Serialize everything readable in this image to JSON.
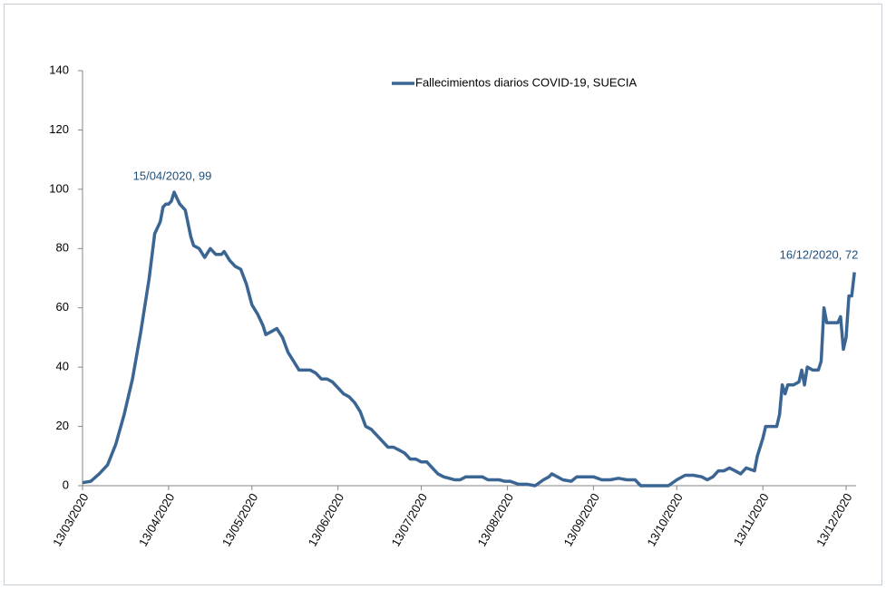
{
  "chart_data": {
    "type": "line",
    "x": [
      "13/03/2020",
      "16/03/2020",
      "19/03/2020",
      "22/03/2020",
      "25/03/2020",
      "28/03/2020",
      "31/03/2020",
      "03/04/2020",
      "06/04/2020",
      "08/04/2020",
      "10/04/2020",
      "11/04/2020",
      "12/04/2020",
      "13/04/2020",
      "14/04/2020",
      "15/04/2020",
      "17/04/2020",
      "19/04/2020",
      "21/04/2020",
      "22/04/2020",
      "24/04/2020",
      "26/04/2020",
      "28/04/2020",
      "30/04/2020",
      "02/05/2020",
      "03/05/2020",
      "05/05/2020",
      "07/05/2020",
      "09/05/2020",
      "11/05/2020",
      "13/05/2020",
      "15/05/2020",
      "17/05/2020",
      "18/05/2020",
      "20/05/2020",
      "22/05/2020",
      "24/05/2020",
      "26/05/2020",
      "28/05/2020",
      "30/05/2020",
      "01/06/2020",
      "03/06/2020",
      "05/06/2020",
      "07/06/2020",
      "09/06/2020",
      "11/06/2020",
      "13/06/2020",
      "15/06/2020",
      "17/06/2020",
      "19/06/2020",
      "21/06/2020",
      "23/06/2020",
      "25/06/2020",
      "27/06/2020",
      "29/06/2020",
      "01/07/2020",
      "03/07/2020",
      "05/07/2020",
      "07/07/2020",
      "09/07/2020",
      "11/07/2020",
      "13/07/2020",
      "15/07/2020",
      "17/07/2020",
      "19/07/2020",
      "21/07/2020",
      "23/07/2020",
      "25/07/2020",
      "27/07/2020",
      "29/07/2020",
      "31/07/2020",
      "02/08/2020",
      "04/08/2020",
      "06/08/2020",
      "08/08/2020",
      "10/08/2020",
      "12/08/2020",
      "14/08/2020",
      "17/08/2020",
      "20/08/2020",
      "23/08/2020",
      "26/08/2020",
      "28/08/2020",
      "29/08/2020",
      "31/08/2020",
      "02/09/2020",
      "05/09/2020",
      "07/09/2020",
      "10/09/2020",
      "13/09/2020",
      "16/09/2020",
      "19/09/2020",
      "22/09/2020",
      "25/09/2020",
      "28/09/2020",
      "30/09/2020",
      "05/10/2020",
      "10/10/2020",
      "13/10/2020",
      "16/10/2020",
      "19/10/2020",
      "22/10/2020",
      "24/10/2020",
      "26/10/2020",
      "28/10/2020",
      "30/10/2020",
      "01/11/2020",
      "03/11/2020",
      "05/11/2020",
      "07/11/2020",
      "10/11/2020",
      "11/11/2020",
      "13/11/2020",
      "14/11/2020",
      "16/11/2020",
      "18/11/2020",
      "19/11/2020",
      "20/11/2020",
      "21/11/2020",
      "22/11/2020",
      "24/11/2020",
      "26/11/2020",
      "27/11/2020",
      "28/11/2020",
      "29/11/2020",
      "01/12/2020",
      "03/12/2020",
      "04/12/2020",
      "05/12/2020",
      "06/12/2020",
      "08/12/2020",
      "10/12/2020",
      "11/12/2020",
      "12/12/2020",
      "13/12/2020",
      "14/12/2020",
      "15/12/2020",
      "16/12/2020"
    ],
    "series": [
      {
        "name": "Fallecimientos diarios COVID-19, SUECIA",
        "color": "#3b6593",
        "values": [
          1,
          1.5,
          4,
          7,
          14,
          24,
          36,
          52,
          70,
          85,
          89,
          94,
          95,
          95,
          96,
          99,
          95,
          93,
          84,
          81,
          80,
          77,
          80,
          78,
          78,
          79,
          76,
          74,
          73,
          68,
          61,
          58,
          54,
          51,
          52,
          53,
          50,
          45,
          42,
          39,
          39,
          39,
          38,
          36,
          36,
          35,
          33,
          31,
          30,
          28,
          25,
          20,
          19,
          17,
          15,
          13,
          13,
          12,
          11,
          9,
          9,
          8,
          8,
          6,
          4,
          3,
          2.5,
          2,
          2,
          3,
          3,
          3,
          3,
          2,
          2,
          2,
          1.5,
          1.5,
          0.5,
          0.5,
          0,
          2,
          3,
          4,
          3,
          2,
          1.5,
          3,
          3,
          3,
          2,
          2,
          2.5,
          2,
          2,
          0,
          0,
          0,
          2,
          3.5,
          3.5,
          3,
          2,
          3,
          5,
          5,
          6,
          5,
          4,
          6,
          5,
          10,
          16,
          20,
          20,
          20,
          24,
          34,
          31,
          34,
          34,
          35,
          39,
          34,
          40,
          39,
          39,
          42,
          60,
          55,
          55,
          55,
          57,
          46,
          50,
          64,
          64,
          72
        ]
      }
    ],
    "annotations": [
      "15/04/2020, 99",
      "16/12/2020, 72"
    ],
    "xlim": [
      "13/03/2020",
      "16/12/2020"
    ],
    "xticks": [
      "13/03/2020",
      "13/04/2020",
      "13/05/2020",
      "13/06/2020",
      "13/07/2020",
      "13/08/2020",
      "13/09/2020",
      "13/10/2020",
      "13/11/2020",
      "13/12/2020"
    ],
    "ylim": [
      0,
      140
    ],
    "yticks": [
      0,
      20,
      40,
      60,
      80,
      100,
      120,
      140
    ],
    "grid": false
  }
}
